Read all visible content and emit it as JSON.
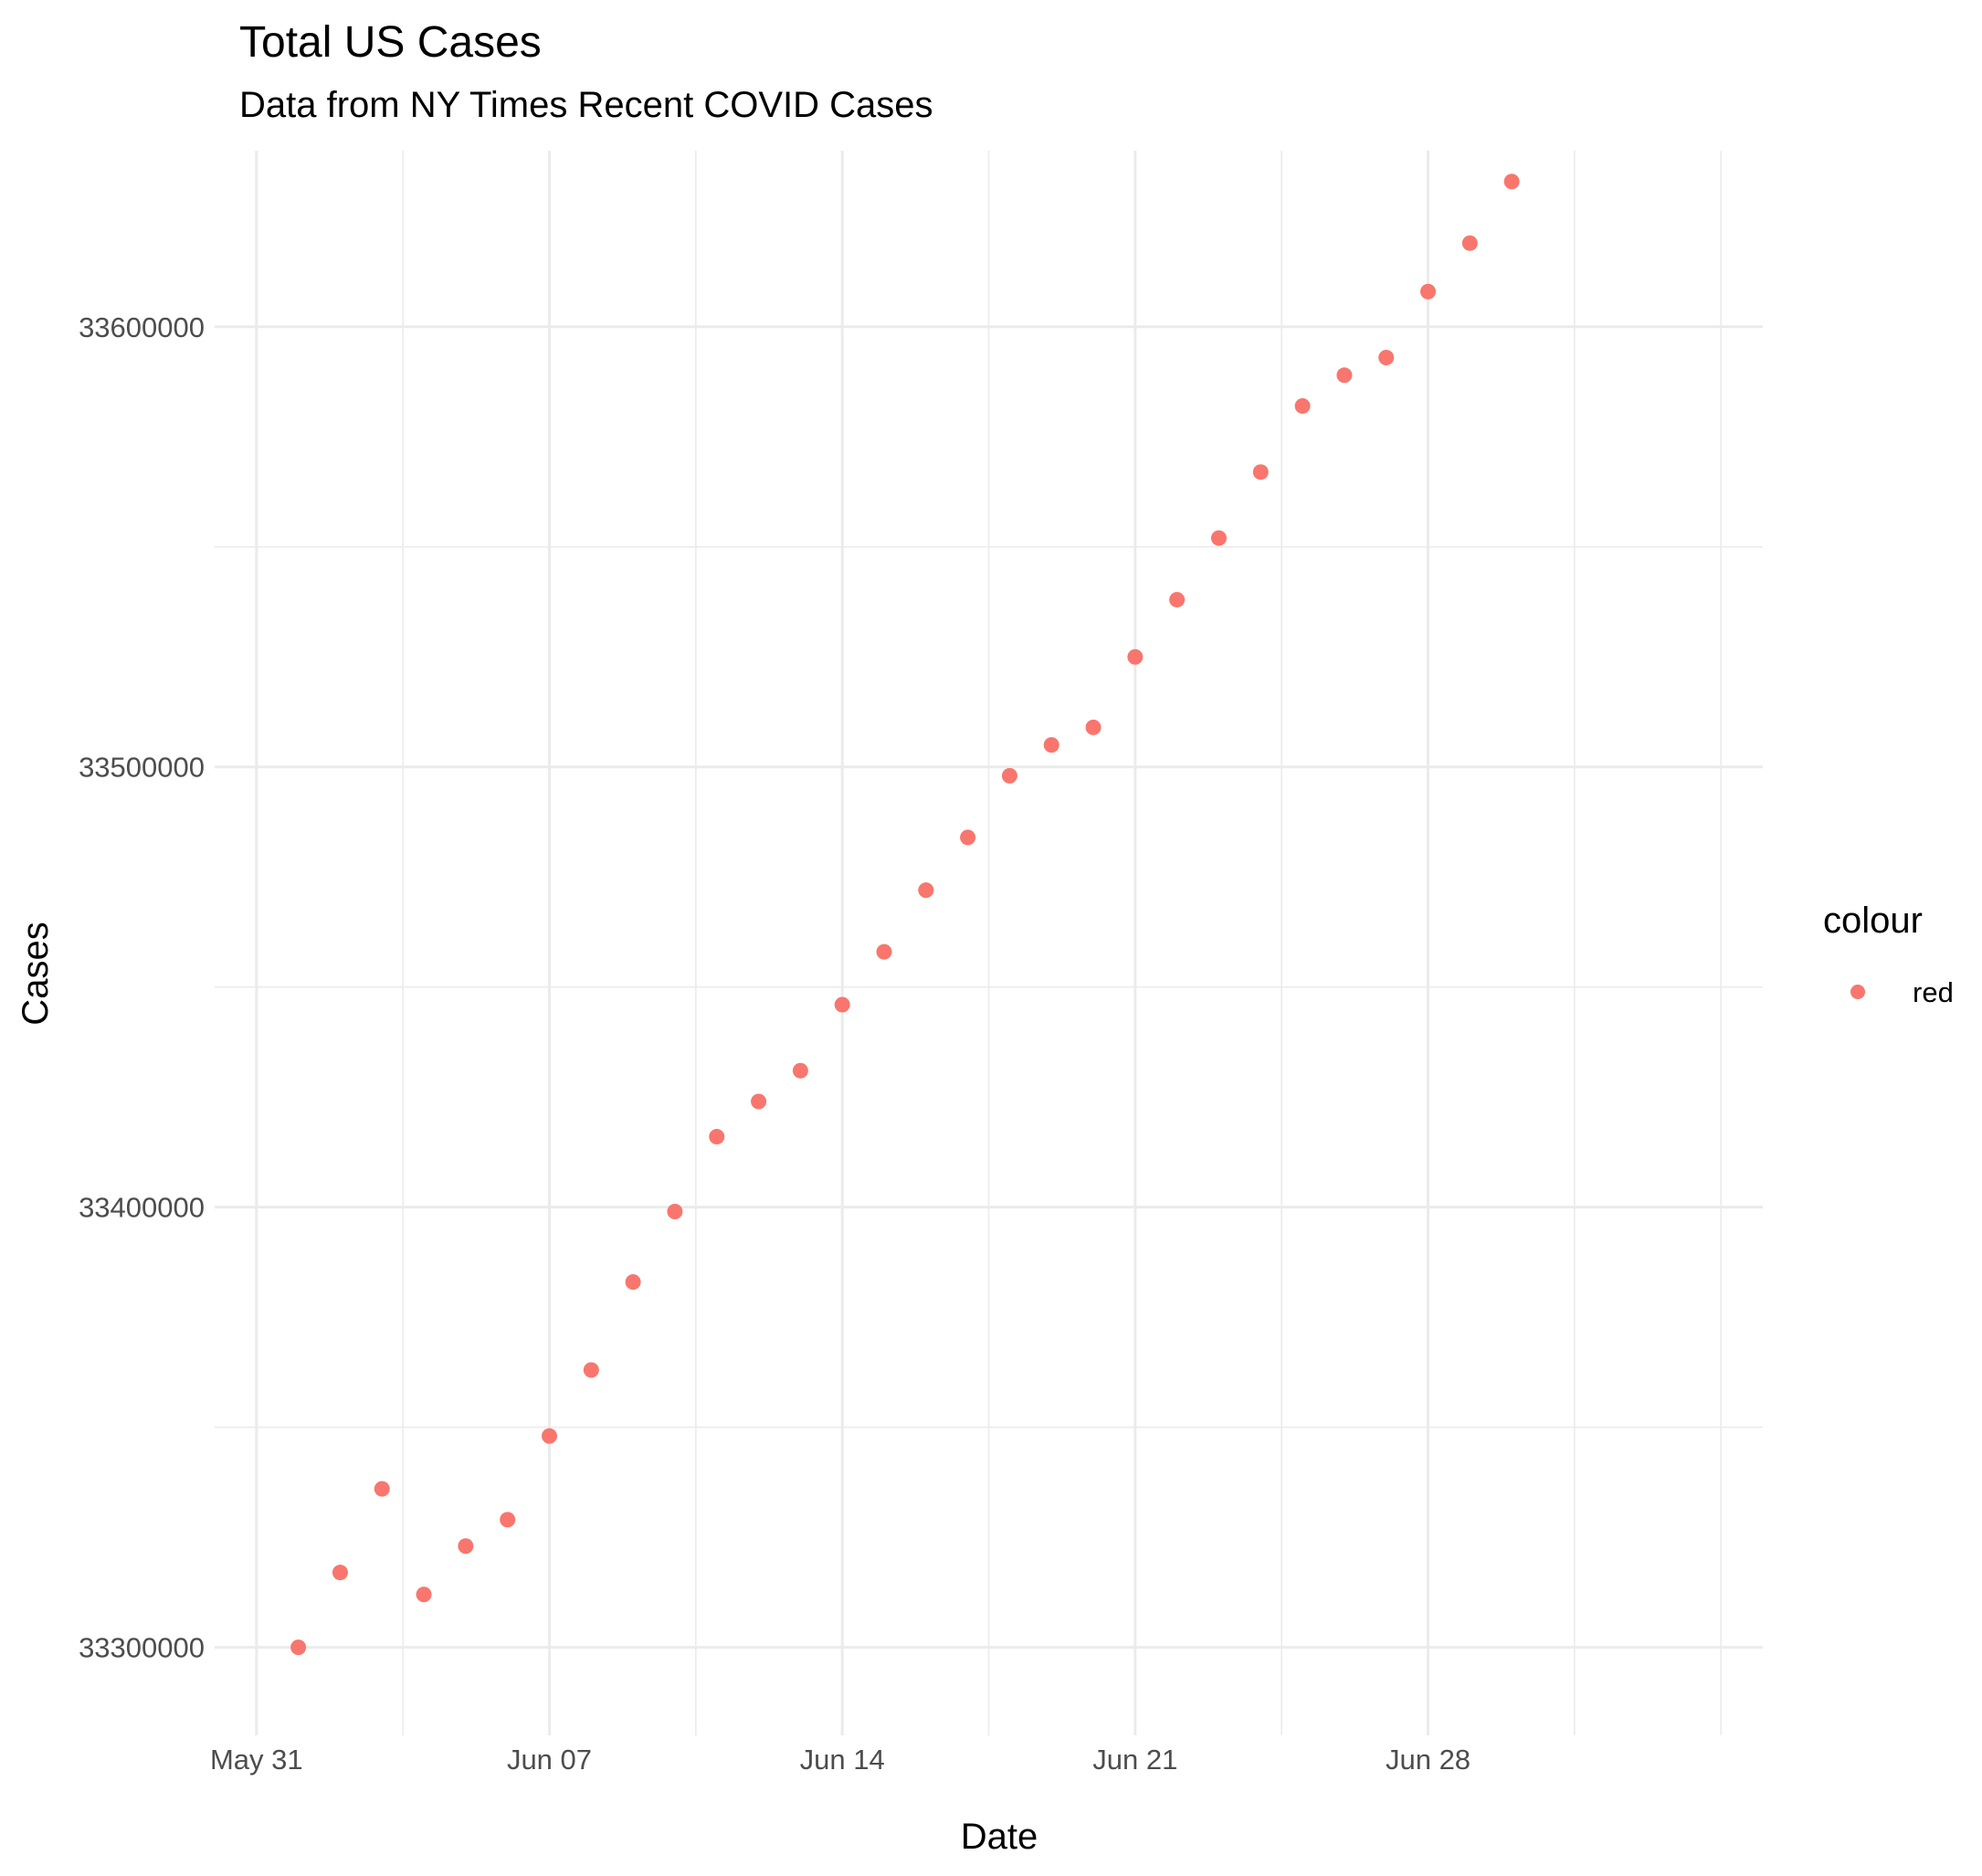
{
  "chart_data": {
    "type": "scatter",
    "title": "Total US Cases",
    "subtitle": "Data from NY Times Recent COVID Cases",
    "xlabel": "Date",
    "ylabel": "Cases",
    "x_axis_type": "date",
    "xlim": [
      "2021-05-30",
      "2021-07-06"
    ],
    "ylim": [
      33280000,
      33640000
    ],
    "x_ticks": [
      {
        "date": "2021-05-31",
        "label": "May 31"
      },
      {
        "date": "2021-06-07",
        "label": "Jun 07"
      },
      {
        "date": "2021-06-14",
        "label": "Jun 14"
      },
      {
        "date": "2021-06-21",
        "label": "Jun 21"
      },
      {
        "date": "2021-06-28",
        "label": "Jun 28"
      }
    ],
    "y_ticks": [
      {
        "value": 33300000,
        "label": "33300000"
      },
      {
        "value": 33400000,
        "label": "33400000"
      },
      {
        "value": 33500000,
        "label": "33500000"
      },
      {
        "value": 33600000,
        "label": "33600000"
      }
    ],
    "grid": true,
    "legend": {
      "title": "colour",
      "placement": "right",
      "entries": [
        {
          "label": "red",
          "color": "#F8766D"
        }
      ]
    },
    "series": [
      {
        "name": "red",
        "color": "#F8766D",
        "points": [
          {
            "x": "2021-06-01",
            "y": 33300000
          },
          {
            "x": "2021-06-02",
            "y": 33317000
          },
          {
            "x": "2021-06-03",
            "y": 33336000
          },
          {
            "x": "2021-06-04",
            "y": 33312000
          },
          {
            "x": "2021-06-05",
            "y": 33323000
          },
          {
            "x": "2021-06-06",
            "y": 33329000
          },
          {
            "x": "2021-06-07",
            "y": 33348000
          },
          {
            "x": "2021-06-08",
            "y": 33363000
          },
          {
            "x": "2021-06-09",
            "y": 33383000
          },
          {
            "x": "2021-06-10",
            "y": 33399000
          },
          {
            "x": "2021-06-11",
            "y": 33416000
          },
          {
            "x": "2021-06-12",
            "y": 33424000
          },
          {
            "x": "2021-06-13",
            "y": 33431000
          },
          {
            "x": "2021-06-14",
            "y": 33446000
          },
          {
            "x": "2021-06-15",
            "y": 33458000
          },
          {
            "x": "2021-06-16",
            "y": 33472000
          },
          {
            "x": "2021-06-17",
            "y": 33484000
          },
          {
            "x": "2021-06-18",
            "y": 33498000
          },
          {
            "x": "2021-06-19",
            "y": 33505000
          },
          {
            "x": "2021-06-20",
            "y": 33509000
          },
          {
            "x": "2021-06-21",
            "y": 33525000
          },
          {
            "x": "2021-06-22",
            "y": 33538000
          },
          {
            "x": "2021-06-23",
            "y": 33552000
          },
          {
            "x": "2021-06-24",
            "y": 33567000
          },
          {
            "x": "2021-06-25",
            "y": 33582000
          },
          {
            "x": "2021-06-26",
            "y": 33589000
          },
          {
            "x": "2021-06-27",
            "y": 33593000
          },
          {
            "x": "2021-06-28",
            "y": 33608000
          },
          {
            "x": "2021-06-29",
            "y": 33619000
          },
          {
            "x": "2021-06-30",
            "y": 33633000
          }
        ]
      }
    ]
  }
}
